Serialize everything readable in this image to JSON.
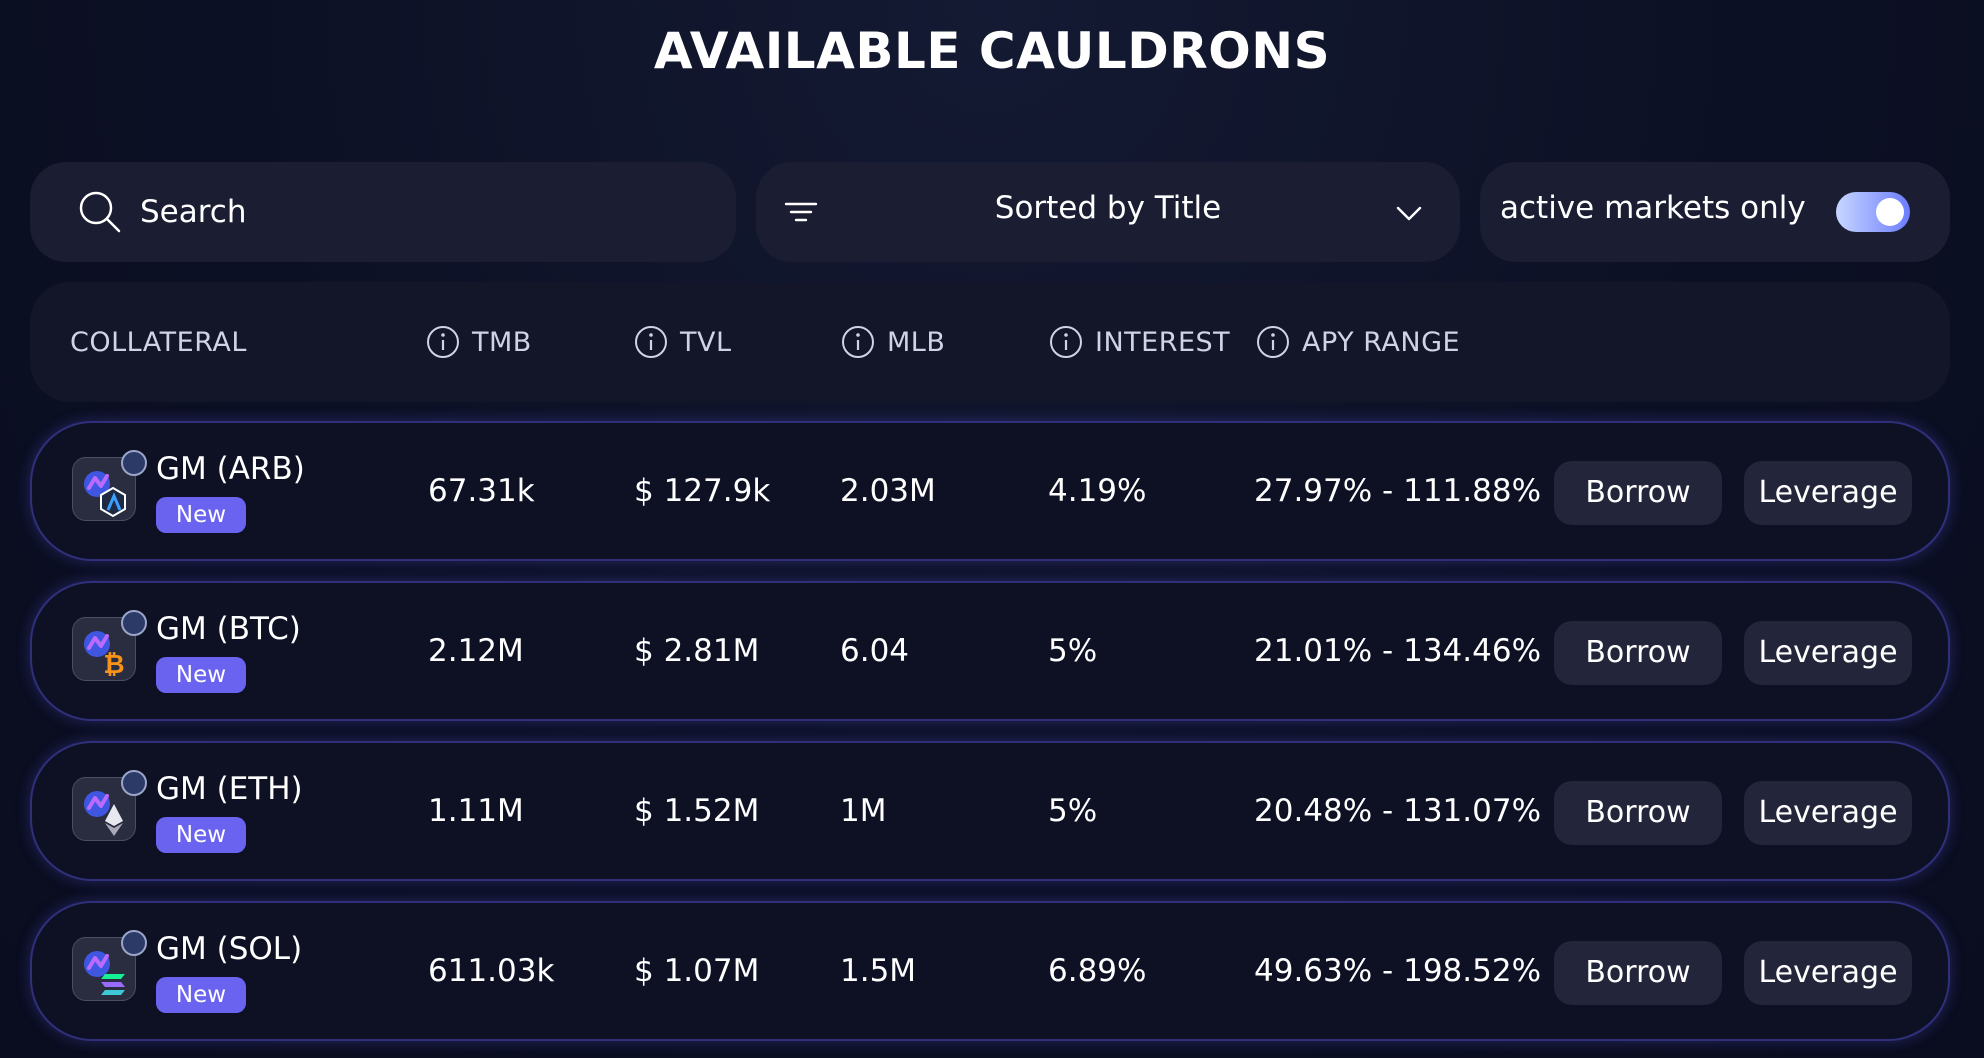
{
  "page": {
    "title": "AVAILABLE CAULDRONS"
  },
  "search": {
    "placeholder": "Search",
    "icon": "search-icon"
  },
  "sort": {
    "label": "Sorted by Title",
    "icon": "filter-icon",
    "dropdown_icon": "chevron-down-icon"
  },
  "toggle": {
    "label": "active markets only",
    "enabled": true
  },
  "table": {
    "headers": {
      "collateral": "COLLATERAL",
      "tmb": "TMB",
      "tvl": "TVL",
      "mlb": "MLB",
      "interest": "INTEREST",
      "apy_range": "APY RANGE"
    },
    "rows": [
      {
        "name": "GM (ARB)",
        "badge": "New",
        "token": "arb",
        "tmb": "67.31k",
        "tvl": "$ 127.9k",
        "mlb": "2.03M",
        "interest": "4.19%",
        "apy_range": "27.97% - 111.88%",
        "borrow_label": "Borrow",
        "leverage_label": "Leverage"
      },
      {
        "name": "GM (BTC)",
        "badge": "New",
        "token": "btc",
        "tmb": "2.12M",
        "tvl": "$ 2.81M",
        "mlb": "6.04",
        "interest": "5%",
        "apy_range": "21.01% - 134.46%",
        "borrow_label": "Borrow",
        "leverage_label": "Leverage"
      },
      {
        "name": "GM (ETH)",
        "badge": "New",
        "token": "eth",
        "tmb": "1.11M",
        "tvl": "$ 1.52M",
        "mlb": "1M",
        "interest": "5%",
        "apy_range": "20.48% - 131.07%",
        "borrow_label": "Borrow",
        "leverage_label": "Leverage"
      },
      {
        "name": "GM (SOL)",
        "badge": "New",
        "token": "sol",
        "tmb": "611.03k",
        "tvl": "$ 1.07M",
        "mlb": "1.5M",
        "interest": "6.89%",
        "apy_range": "49.63% - 198.52%",
        "borrow_label": "Borrow",
        "leverage_label": "Leverage"
      }
    ]
  },
  "colors": {
    "background": "#0c1024",
    "control_bg": "#1b1e32",
    "badge": "#6a63f0",
    "row_border": "#2f2f7a",
    "button_bg": "#23253a"
  }
}
